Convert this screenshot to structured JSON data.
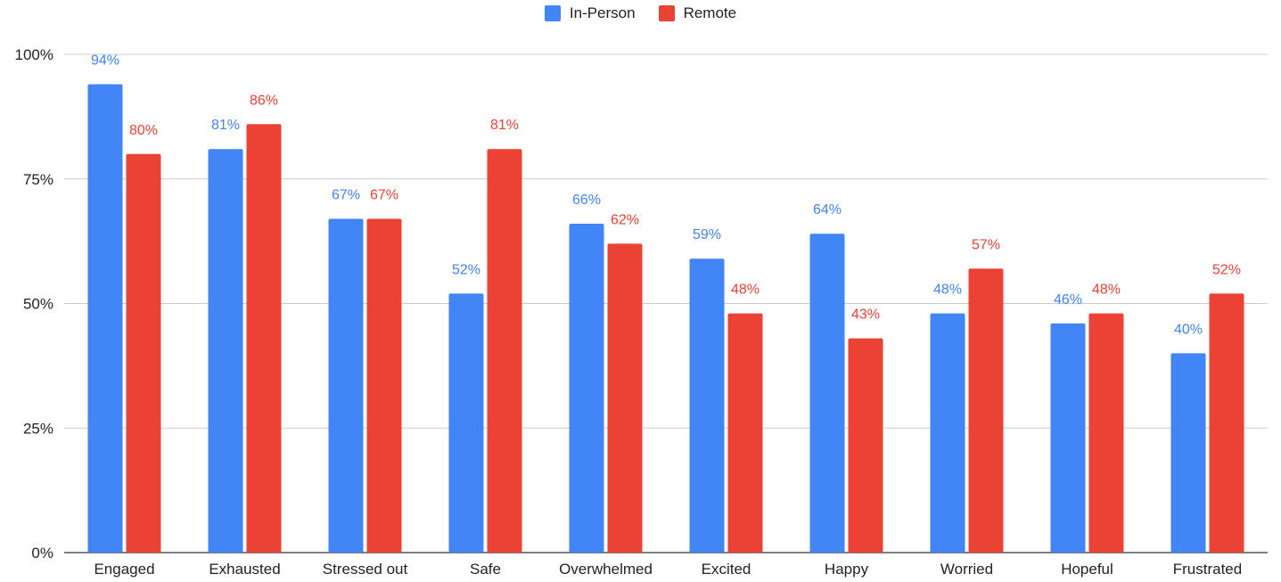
{
  "chart_data": {
    "type": "bar",
    "categories": [
      "Engaged",
      "Exhausted",
      "Stressed out",
      "Safe",
      "Overwhelmed",
      "Excited",
      "Happy",
      "Worried",
      "Hopeful",
      "Frustrated"
    ],
    "series": [
      {
        "name": "In-Person",
        "color": "#4285F4",
        "values": [
          94,
          81,
          67,
          52,
          66,
          59,
          64,
          48,
          46,
          40
        ],
        "labels": [
          "94%",
          "81%",
          "67%",
          "52%",
          "66%",
          "59%",
          "64%",
          "48%",
          "46%",
          "40%"
        ]
      },
      {
        "name": "Remote",
        "color": "#EA4335",
        "values": [
          80,
          86,
          67,
          81,
          62,
          48,
          43,
          57,
          48,
          52
        ],
        "labels": [
          "80%",
          "86%",
          "67%",
          "81%",
          "62%",
          "48%",
          "43%",
          "57%",
          "48%",
          "52%"
        ]
      }
    ],
    "y_ticks": [
      "0%",
      "25%",
      "50%",
      "75%",
      "100%"
    ],
    "ylim": [
      0,
      100
    ],
    "grid": true,
    "legend_position": "top-center",
    "title": "",
    "xlabel": "",
    "ylabel": ""
  }
}
